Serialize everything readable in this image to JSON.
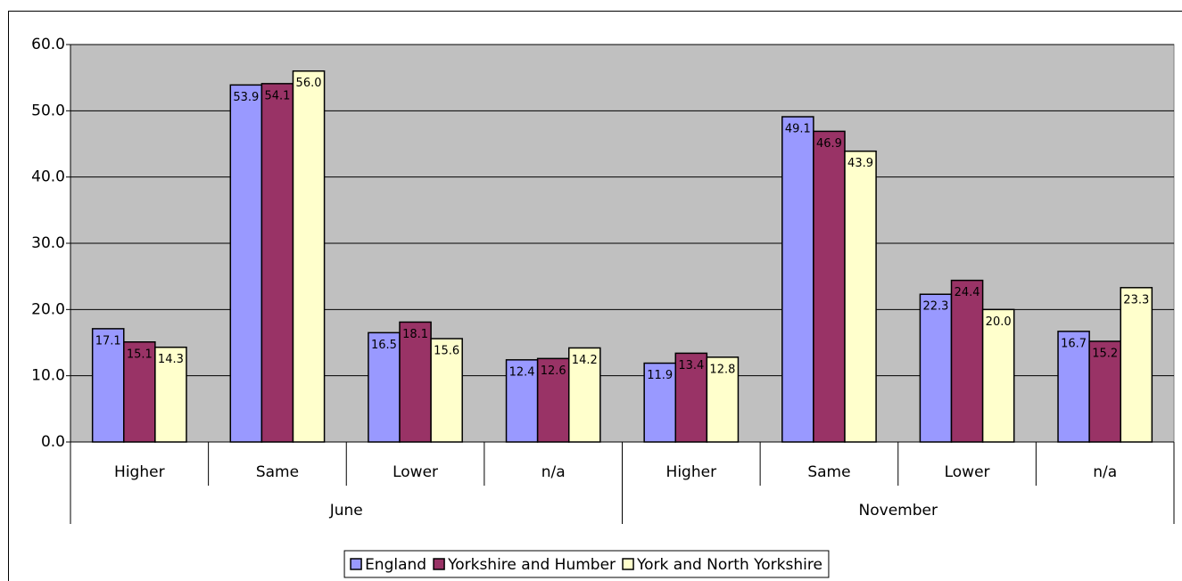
{
  "chart_data": {
    "type": "bar",
    "category_groups": [
      {
        "name": "June",
        "categories": [
          "Higher",
          "Same",
          "Lower",
          "n/a"
        ]
      },
      {
        "name": "November",
        "categories": [
          "Higher",
          "Same",
          "Lower",
          "n/a"
        ]
      }
    ],
    "series": [
      {
        "name": "England",
        "color": "#9999ff",
        "values": [
          17.1,
          53.9,
          16.5,
          12.4,
          11.9,
          49.1,
          22.3,
          16.7
        ],
        "value_labels": [
          "17.1",
          "53.9",
          "16.5",
          "12.4",
          "11.9",
          "49.1",
          "22.3",
          "16.7"
        ]
      },
      {
        "name": "Yorkshire and Humber",
        "color": "#993366",
        "values": [
          15.1,
          54.1,
          18.1,
          12.6,
          13.4,
          46.9,
          24.4,
          15.2
        ],
        "value_labels": [
          "15.1",
          "54.1",
          "18.1",
          "12.6",
          "13.4",
          "46.9",
          "24.4",
          "15.2"
        ]
      },
      {
        "name": "York and North Yorkshire",
        "color": "#ffffcc",
        "values": [
          14.3,
          56.0,
          15.6,
          14.2,
          12.8,
          43.9,
          20.0,
          23.3
        ],
        "value_labels": [
          "14.3",
          "56.0",
          "15.6",
          "14.2",
          "12.8",
          "43.9",
          "20.0",
          "23.3"
        ]
      }
    ],
    "ylim": [
      0,
      60
    ],
    "yticks": [
      {
        "value": 0,
        "label": "0.0"
      },
      {
        "value": 10,
        "label": "10.0"
      },
      {
        "value": 20,
        "label": "20.0"
      },
      {
        "value": 30,
        "label": "30.0"
      },
      {
        "value": 40,
        "label": "40.0"
      },
      {
        "value": 50,
        "label": "50.0"
      },
      {
        "value": 60,
        "label": "60.0"
      }
    ],
    "grid": true,
    "plot_background": "#c0c0c0",
    "legend": "bottom"
  }
}
